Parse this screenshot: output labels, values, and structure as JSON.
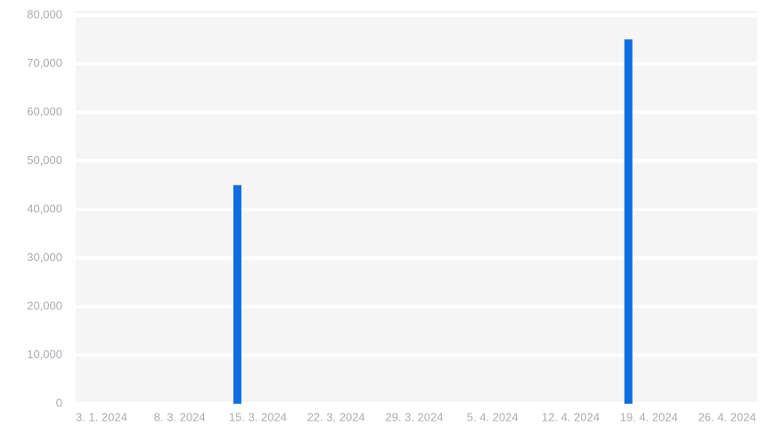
{
  "chart_data": {
    "type": "bar",
    "categories": [
      "3. 1. 2024",
      "8. 3. 2024",
      "15. 3. 2024",
      "22. 3. 2024",
      "29. 3. 2024",
      "5. 4. 2024",
      "12. 4. 2024",
      "19. 4. 2024",
      "26. 4. 2024"
    ],
    "values": [
      null,
      null,
      45000,
      null,
      null,
      null,
      null,
      75000,
      null
    ],
    "color": "#0e6de0",
    "ylim": [
      0,
      80000
    ],
    "yticks": [
      0,
      {
        "value": 10000,
        "label": "10,000"
      },
      {
        "value": 20000,
        "label": "20,000"
      },
      {
        "value": 30000,
        "label": "30,000"
      },
      {
        "value": 40000,
        "label": "40,000"
      },
      {
        "value": 50000,
        "label": "50,000"
      },
      {
        "value": 60000,
        "label": "60,000"
      },
      {
        "value": 70000,
        "label": "70,000"
      },
      {
        "value": 80000,
        "label": "80,000"
      }
    ],
    "grid": true
  }
}
